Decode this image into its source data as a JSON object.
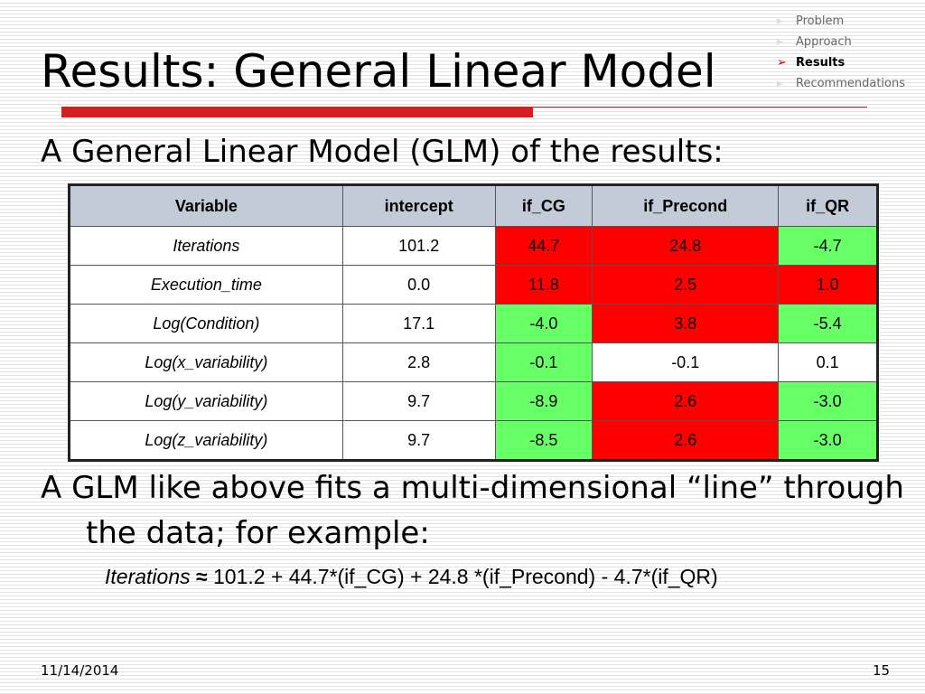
{
  "nav": {
    "items": [
      "Problem",
      "Approach",
      "Results",
      "Recommendations"
    ]
  },
  "title": "Results: General Linear Model",
  "intro": "A General Linear Model (GLM) of the results:",
  "table": {
    "header": [
      "Variable",
      "intercept",
      "if_CG",
      "if_Precond",
      "if_QR"
    ],
    "rows": [
      [
        "Iterations",
        "101.2",
        "44.7",
        "24.8",
        "-4.7"
      ],
      [
        "Execution_time",
        "0.0",
        "11.8",
        "2.5",
        "1.0"
      ],
      [
        "Log(Condition)",
        "17.1",
        "-4.0",
        "3.8",
        "-5.4"
      ],
      [
        "Log(x_variability)",
        "2.8",
        "-0.1",
        "-0.1",
        "0.1"
      ],
      [
        "Log(y_variability)",
        "9.7",
        "-8.9",
        "2.6",
        "-3.0"
      ],
      [
        "Log(z_variability)",
        "9.7",
        "-8.5",
        "2.6",
        "-3.0"
      ]
    ]
  },
  "explanation": "A GLM like above fits a multi-dimensional “line” through the data; for example:",
  "equation": {
    "lhs": "Iterations",
    "symbol": "≈",
    "rhs": "101.2 + 44.7*(if_CG) + 24.8 *(if_Precond) - 4.7*(if_QR)"
  },
  "footer": {
    "date": "11/14/2014",
    "page": "15"
  }
}
